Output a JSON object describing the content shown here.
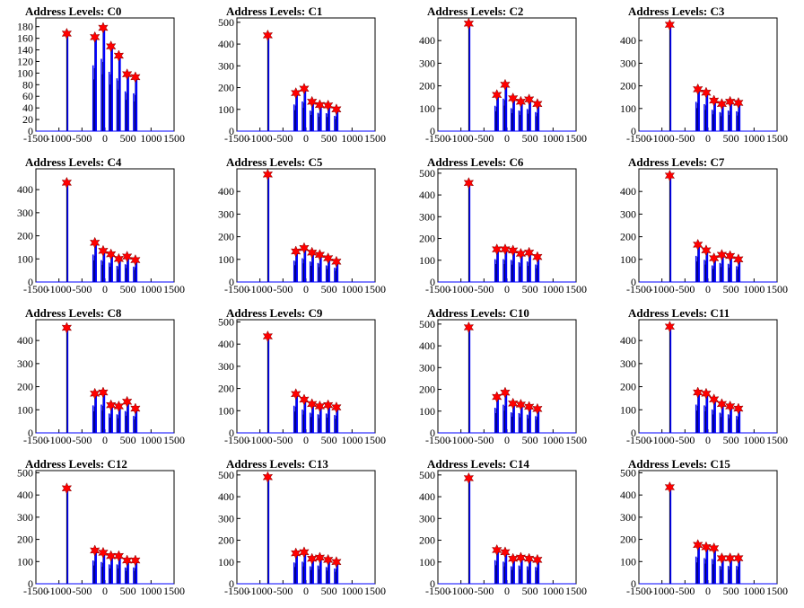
{
  "colors": {
    "histogram": "#0000ff",
    "outline": "#000000",
    "peak_marker": "#ff0000"
  },
  "x_ticks": [
    -1500,
    -1000,
    -500,
    0,
    500,
    1000,
    1500
  ],
  "x_tick_labels": [
    "-1500",
    "-1000",
    "-500",
    "0",
    "500",
    "1000",
    "1500"
  ],
  "chart_data": [
    {
      "type": "histogram",
      "title": "Address Levels: C0",
      "xlim": [
        -1500,
        1500
      ],
      "ylim": [
        0,
        195
      ],
      "yticks": [
        0,
        20,
        40,
        60,
        80,
        100,
        120,
        140,
        160,
        180
      ],
      "peaks": [
        {
          "x": -830,
          "y": 168
        },
        {
          "x": -220,
          "y": 162
        },
        {
          "x": -40,
          "y": 178
        },
        {
          "x": 130,
          "y": 146
        },
        {
          "x": 300,
          "y": 130
        },
        {
          "x": 480,
          "y": 98
        },
        {
          "x": 660,
          "y": 93
        }
      ]
    },
    {
      "type": "histogram",
      "title": "Address Levels: C1",
      "xlim": [
        -1500,
        1500
      ],
      "ylim": [
        0,
        520
      ],
      "yticks": [
        0,
        100,
        200,
        300,
        400,
        500
      ],
      "peaks": [
        {
          "x": -830,
          "y": 440
        },
        {
          "x": -220,
          "y": 175
        },
        {
          "x": -40,
          "y": 195
        },
        {
          "x": 130,
          "y": 135
        },
        {
          "x": 300,
          "y": 120
        },
        {
          "x": 480,
          "y": 118
        },
        {
          "x": 660,
          "y": 100
        }
      ]
    },
    {
      "type": "histogram",
      "title": "Address Levels: C2",
      "xlim": [
        -1500,
        1500
      ],
      "ylim": [
        0,
        500
      ],
      "yticks": [
        0,
        100,
        200,
        300,
        400
      ],
      "peaks": [
        {
          "x": -830,
          "y": 475
        },
        {
          "x": -220,
          "y": 160
        },
        {
          "x": -40,
          "y": 205
        },
        {
          "x": 130,
          "y": 145
        },
        {
          "x": 300,
          "y": 130
        },
        {
          "x": 480,
          "y": 140
        },
        {
          "x": 660,
          "y": 120
        }
      ]
    },
    {
      "type": "histogram",
      "title": "Address Levels: C3",
      "xlim": [
        -1500,
        1500
      ],
      "ylim": [
        0,
        500
      ],
      "yticks": [
        0,
        100,
        200,
        300,
        400
      ],
      "peaks": [
        {
          "x": -830,
          "y": 470
        },
        {
          "x": -220,
          "y": 185
        },
        {
          "x": -40,
          "y": 170
        },
        {
          "x": 130,
          "y": 135
        },
        {
          "x": 300,
          "y": 120
        },
        {
          "x": 480,
          "y": 130
        },
        {
          "x": 660,
          "y": 125
        }
      ]
    },
    {
      "type": "histogram",
      "title": "Address Levels: C4",
      "xlim": [
        -1500,
        1500
      ],
      "ylim": [
        0,
        490
      ],
      "yticks": [
        0,
        100,
        200,
        300,
        400
      ],
      "peaks": [
        {
          "x": -830,
          "y": 430
        },
        {
          "x": -220,
          "y": 170
        },
        {
          "x": -40,
          "y": 135
        },
        {
          "x": 130,
          "y": 120
        },
        {
          "x": 300,
          "y": 100
        },
        {
          "x": 480,
          "y": 110
        },
        {
          "x": 660,
          "y": 95
        }
      ]
    },
    {
      "type": "histogram",
      "title": "Address Levels: C5",
      "xlim": [
        -1500,
        1500
      ],
      "ylim": [
        0,
        500
      ],
      "yticks": [
        0,
        100,
        200,
        300,
        400
      ],
      "peaks": [
        {
          "x": -830,
          "y": 475
        },
        {
          "x": -220,
          "y": 135
        },
        {
          "x": -40,
          "y": 150
        },
        {
          "x": 130,
          "y": 130
        },
        {
          "x": 300,
          "y": 120
        },
        {
          "x": 480,
          "y": 105
        },
        {
          "x": 660,
          "y": 90
        }
      ]
    },
    {
      "type": "histogram",
      "title": "Address Levels: C6",
      "xlim": [
        -1500,
        1500
      ],
      "ylim": [
        0,
        520
      ],
      "yticks": [
        0,
        100,
        200,
        300,
        400,
        500
      ],
      "peaks": [
        {
          "x": -830,
          "y": 455
        },
        {
          "x": -220,
          "y": 150
        },
        {
          "x": -40,
          "y": 150
        },
        {
          "x": 130,
          "y": 145
        },
        {
          "x": 300,
          "y": 130
        },
        {
          "x": 480,
          "y": 135
        },
        {
          "x": 660,
          "y": 115
        }
      ]
    },
    {
      "type": "histogram",
      "title": "Address Levels: C7",
      "xlim": [
        -1500,
        1500
      ],
      "ylim": [
        0,
        500
      ],
      "yticks": [
        0,
        100,
        200,
        300,
        400
      ],
      "peaks": [
        {
          "x": -830,
          "y": 470
        },
        {
          "x": -220,
          "y": 165
        },
        {
          "x": -40,
          "y": 140
        },
        {
          "x": 130,
          "y": 105
        },
        {
          "x": 300,
          "y": 120
        },
        {
          "x": 480,
          "y": 115
        },
        {
          "x": 660,
          "y": 100
        }
      ]
    },
    {
      "type": "histogram",
      "title": "Address Levels: C8",
      "xlim": [
        -1500,
        1500
      ],
      "ylim": [
        0,
        490
      ],
      "yticks": [
        0,
        100,
        200,
        300,
        400
      ],
      "peaks": [
        {
          "x": -830,
          "y": 455
        },
        {
          "x": -220,
          "y": 170
        },
        {
          "x": -40,
          "y": 175
        },
        {
          "x": 130,
          "y": 120
        },
        {
          "x": 300,
          "y": 115
        },
        {
          "x": 480,
          "y": 135
        },
        {
          "x": 660,
          "y": 105
        }
      ]
    },
    {
      "type": "histogram",
      "title": "Address Levels: C9",
      "xlim": [
        -1500,
        1500
      ],
      "ylim": [
        0,
        510
      ],
      "yticks": [
        0,
        100,
        200,
        300,
        400,
        500
      ],
      "peaks": [
        {
          "x": -830,
          "y": 435
        },
        {
          "x": -220,
          "y": 175
        },
        {
          "x": -40,
          "y": 150
        },
        {
          "x": 130,
          "y": 130
        },
        {
          "x": 300,
          "y": 120
        },
        {
          "x": 480,
          "y": 125
        },
        {
          "x": 660,
          "y": 115
        }
      ]
    },
    {
      "type": "histogram",
      "title": "Address Levels: C10",
      "xlim": [
        -1500,
        1500
      ],
      "ylim": [
        0,
        520
      ],
      "yticks": [
        0,
        100,
        200,
        300,
        400,
        500
      ],
      "peaks": [
        {
          "x": -830,
          "y": 485
        },
        {
          "x": -220,
          "y": 165
        },
        {
          "x": -40,
          "y": 185
        },
        {
          "x": 130,
          "y": 135
        },
        {
          "x": 300,
          "y": 130
        },
        {
          "x": 480,
          "y": 120
        },
        {
          "x": 660,
          "y": 110
        }
      ]
    },
    {
      "type": "histogram",
      "title": "Address Levels: C11",
      "xlim": [
        -1500,
        1500
      ],
      "ylim": [
        0,
        490
      ],
      "yticks": [
        0,
        100,
        200,
        300,
        400
      ],
      "peaks": [
        {
          "x": -830,
          "y": 460
        },
        {
          "x": -220,
          "y": 175
        },
        {
          "x": -40,
          "y": 170
        },
        {
          "x": 130,
          "y": 145
        },
        {
          "x": 300,
          "y": 125
        },
        {
          "x": 480,
          "y": 115
        },
        {
          "x": 660,
          "y": 105
        }
      ]
    },
    {
      "type": "histogram",
      "title": "Address Levels: C12",
      "xlim": [
        -1500,
        1500
      ],
      "ylim": [
        0,
        510
      ],
      "yticks": [
        0,
        100,
        200,
        300,
        400,
        500
      ],
      "peaks": [
        {
          "x": -830,
          "y": 430
        },
        {
          "x": -220,
          "y": 150
        },
        {
          "x": -40,
          "y": 140
        },
        {
          "x": 130,
          "y": 125
        },
        {
          "x": 300,
          "y": 125
        },
        {
          "x": 480,
          "y": 105
        },
        {
          "x": 660,
          "y": 105
        }
      ]
    },
    {
      "type": "histogram",
      "title": "Address Levels: C13",
      "xlim": [
        -1500,
        1500
      ],
      "ylim": [
        0,
        520
      ],
      "yticks": [
        0,
        100,
        200,
        300,
        400,
        500
      ],
      "peaks": [
        {
          "x": -830,
          "y": 490
        },
        {
          "x": -220,
          "y": 140
        },
        {
          "x": -40,
          "y": 145
        },
        {
          "x": 130,
          "y": 115
        },
        {
          "x": 300,
          "y": 120
        },
        {
          "x": 480,
          "y": 110
        },
        {
          "x": 660,
          "y": 100
        }
      ]
    },
    {
      "type": "histogram",
      "title": "Address Levels: C14",
      "xlim": [
        -1500,
        1500
      ],
      "ylim": [
        0,
        520
      ],
      "yticks": [
        0,
        100,
        200,
        300,
        400,
        500
      ],
      "peaks": [
        {
          "x": -830,
          "y": 485
        },
        {
          "x": -220,
          "y": 155
        },
        {
          "x": -40,
          "y": 145
        },
        {
          "x": 130,
          "y": 115
        },
        {
          "x": 300,
          "y": 120
        },
        {
          "x": 480,
          "y": 115
        },
        {
          "x": 660,
          "y": 110
        }
      ]
    },
    {
      "type": "histogram",
      "title": "Address Levels: C15",
      "xlim": [
        -1500,
        1500
      ],
      "ylim": [
        0,
        510
      ],
      "yticks": [
        0,
        100,
        200,
        300,
        400,
        500
      ],
      "peaks": [
        {
          "x": -830,
          "y": 435
        },
        {
          "x": -220,
          "y": 175
        },
        {
          "x": -40,
          "y": 165
        },
        {
          "x": 130,
          "y": 160
        },
        {
          "x": 300,
          "y": 115
        },
        {
          "x": 480,
          "y": 115
        },
        {
          "x": 660,
          "y": 115
        }
      ]
    }
  ]
}
